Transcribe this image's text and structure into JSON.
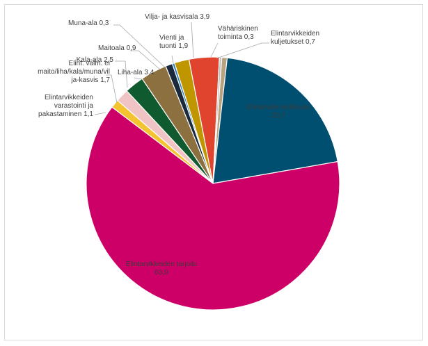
{
  "chart_data": {
    "type": "pie",
    "title": "",
    "start_angle_deg": 4.0,
    "slices": [
      {
        "name": "Elintarvikkeiden kuljetukset",
        "label": "Elintarvikkeiden kuljetukset 0,7",
        "value": 0.7,
        "color": "#b7a37d"
      },
      {
        "name": "Elintarviketeollisuus",
        "label": "Elintarvike-teollisuus 20,7",
        "value": 20.7,
        "color": "#014f70"
      },
      {
        "name": "Elintarvikkeiden tarjoilu",
        "label": "Elintarvikkeiden tarjoilu 63,9",
        "value": 63.9,
        "color": "#cd0067"
      },
      {
        "name": "Elintarvikkeiden varastointi ja pakastaminen",
        "label": "Elintarvikkeiden varastointi ja pakastaminen 1,1",
        "value": 1.1,
        "color": "#f4c430"
      },
      {
        "name": "Elint. valm. ei maito/liha/kala/muna/vilja-kasvis",
        "label": "Elint. valm. ei maito/liha/kala/muna/vilja-kasvis 1,7",
        "value": 1.7,
        "color": "#f0c4c4"
      },
      {
        "name": "Kala-ala",
        "label": "Kala-ala 2,5",
        "value": 2.5,
        "color": "#0f5a2e"
      },
      {
        "name": "Liha-ala",
        "label": "Liha-ala 3,4",
        "value": 3.4,
        "color": "#8c7040"
      },
      {
        "name": "Maitoala",
        "label": "Maitoala 0,9",
        "value": 0.9,
        "color": "#1a2a3c"
      },
      {
        "name": "Muna-ala",
        "label": "Muna-ala 0,3",
        "value": 0.3,
        "color": "#2c7fb8"
      },
      {
        "name": "Vienti ja tuonti",
        "label": "Vienti ja tuonti 1,9",
        "value": 1.9,
        "color": "#bf9600"
      },
      {
        "name": "Vilja- ja kasvisala",
        "label": "Vilja- ja kasvisala 3,9",
        "value": 3.9,
        "color": "#e0442e"
      },
      {
        "name": "Vähäriskinen toiminta",
        "label": "Vähäriskinen toiminta 0,3",
        "value": 0.3,
        "color": "#bfbfbf"
      }
    ]
  }
}
